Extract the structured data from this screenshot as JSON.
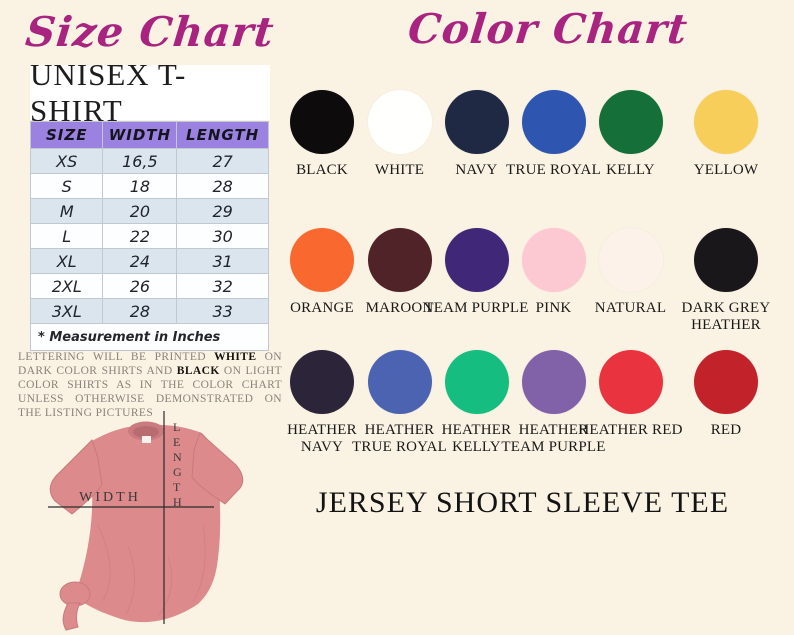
{
  "page": {
    "background": "#faf3e3",
    "accent": "#a92380"
  },
  "size_chart": {
    "title": "Size Chart",
    "product_header": "UNISEX T-SHIRT",
    "table": {
      "columns": [
        "SIZE",
        "WIDTH",
        "LENGTH"
      ],
      "header_bg": "#9b82e0",
      "alt_row_bg": "#dbe5ee",
      "plain_row_bg": "#fdfeff",
      "rows": [
        {
          "size": "XS",
          "width": "16,5",
          "length": "27"
        },
        {
          "size": "S",
          "width": "18",
          "length": "28"
        },
        {
          "size": "M",
          "width": "20",
          "length": "29"
        },
        {
          "size": "L",
          "width": "22",
          "length": "30"
        },
        {
          "size": "XL",
          "width": "24",
          "length": "31"
        },
        {
          "size": "2XL",
          "width": "26",
          "length": "32"
        },
        {
          "size": "3XL",
          "width": "28",
          "length": "33"
        }
      ],
      "footnote": "* Measurement in Inches"
    },
    "print_note_segments": [
      {
        "text": "LETTERING WILL BE PRINTED ",
        "bold": false
      },
      {
        "text": "WHITE",
        "bold": true
      },
      {
        "text": " ON DARK COLOR SHIRTS AND ",
        "bold": false
      },
      {
        "text": "BLACK",
        "bold": true
      },
      {
        "text": " ON LIGHT COLOR SHIRTS AS IN THE COLOR CHART UNLESS OTHERWISE DEMONSTRATED ON THE LISTING PICTURES",
        "bold": false
      }
    ],
    "measurement_photo": {
      "width_label": "WIDTH",
      "length_label": "LENGTH",
      "shirt_color": "#dd8a8c",
      "shirt_shade": "#c87a7d"
    }
  },
  "color_chart": {
    "title": "Color Chart",
    "rows": [
      [
        {
          "name": "BLACK",
          "hex": "#0d0b0c"
        },
        {
          "name": "WHITE",
          "hex": "#fffffd"
        },
        {
          "name": "NAVY",
          "hex": "#202944"
        },
        {
          "name": "TRUE ROYAL",
          "hex": "#2e55af"
        },
        {
          "name": "KELLY",
          "hex": "#156f39"
        },
        {
          "name": "YELLOW",
          "hex": "#f7ce5a"
        }
      ],
      [
        {
          "name": "ORANGE",
          "hex": "#f9682e"
        },
        {
          "name": "MAROON",
          "hex": "#4f2327"
        },
        {
          "name": "TEAM PURPLE",
          "hex": "#402777"
        },
        {
          "name": "PINK",
          "hex": "#fcc8d2"
        },
        {
          "name": "NATURAL",
          "hex": "#fdf2ea"
        },
        {
          "name": "DARK GREY HEATHER",
          "hex": "#1a171a"
        }
      ],
      [
        {
          "name": "HEATHER NAVY",
          "hex": "#2c2539"
        },
        {
          "name": "HEATHER TRUE ROYAL",
          "hex": "#4b63b1"
        },
        {
          "name": "HEATHER KELLY",
          "hex": "#15bd80"
        },
        {
          "name": "HEATHER TEAM PURPLE",
          "hex": "#8161a8"
        },
        {
          "name": "HEATHER RED",
          "hex": "#e9343f"
        },
        {
          "name": "RED",
          "hex": "#c2222a"
        }
      ]
    ]
  },
  "product_title": "JERSEY SHORT SLEEVE TEE"
}
